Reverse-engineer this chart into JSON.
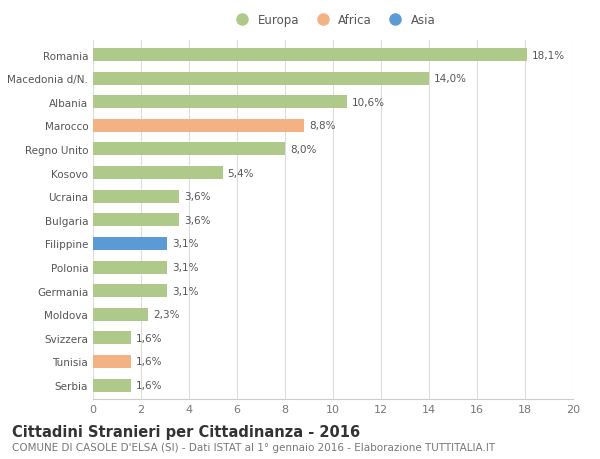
{
  "title": "Cittadini Stranieri per Cittadinanza - 2016",
  "subtitle": "COMUNE DI CASOLE D'ELSA (SI) - Dati ISTAT al 1° gennaio 2016 - Elaborazione TUTTITALIA.IT",
  "categories": [
    "Romania",
    "Macedonia d/N.",
    "Albania",
    "Marocco",
    "Regno Unito",
    "Kosovo",
    "Ucraina",
    "Bulgaria",
    "Filippine",
    "Polonia",
    "Germania",
    "Moldova",
    "Svizzera",
    "Tunisia",
    "Serbia"
  ],
  "values": [
    18.1,
    14.0,
    10.6,
    8.8,
    8.0,
    5.4,
    3.6,
    3.6,
    3.1,
    3.1,
    3.1,
    2.3,
    1.6,
    1.6,
    1.6
  ],
  "labels": [
    "18,1%",
    "14,0%",
    "10,6%",
    "8,8%",
    "8,0%",
    "5,4%",
    "3,6%",
    "3,6%",
    "3,1%",
    "3,1%",
    "3,1%",
    "2,3%",
    "1,6%",
    "1,6%",
    "1,6%"
  ],
  "continent": [
    "Europa",
    "Europa",
    "Europa",
    "Africa",
    "Europa",
    "Europa",
    "Europa",
    "Europa",
    "Asia",
    "Europa",
    "Europa",
    "Europa",
    "Europa",
    "Africa",
    "Europa"
  ],
  "colors": {
    "Europa": "#aec98a",
    "Africa": "#f4b183",
    "Asia": "#5b9bd5"
  },
  "legend_labels": [
    "Europa",
    "Africa",
    "Asia"
  ],
  "xlim": [
    0,
    20
  ],
  "xticks": [
    0,
    2,
    4,
    6,
    8,
    10,
    12,
    14,
    16,
    18,
    20
  ],
  "background_color": "#ffffff",
  "grid_color": "#dddddd",
  "bar_height": 0.55,
  "title_fontsize": 10.5,
  "subtitle_fontsize": 7.5,
  "label_fontsize": 7.5,
  "ytick_fontsize": 7.5,
  "xtick_fontsize": 8,
  "legend_fontsize": 8.5
}
